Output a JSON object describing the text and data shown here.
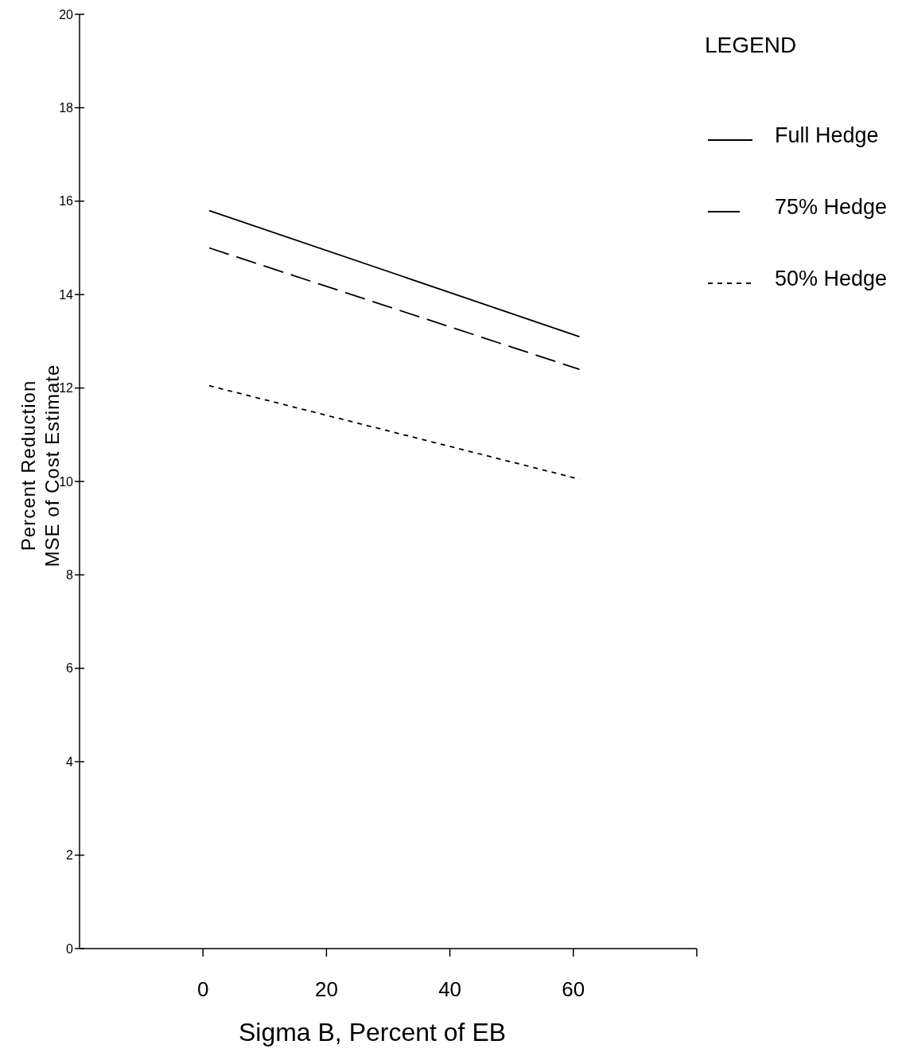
{
  "chart_data": {
    "type": "line",
    "xlabel": "Sigma B, Percent of EB",
    "ylabel": "Percent Reduction\nMSE of Cost Estimate",
    "legend_title": "LEGEND",
    "legend": "top right",
    "grid": false,
    "xlim": [
      -20,
      80
    ],
    "xticks": [
      0,
      20,
      40,
      60,
      {
        "value": 80,
        "label": null
      }
    ],
    "x": [
      1,
      61
    ],
    "ylim": [
      0,
      20
    ],
    "yticks": [
      0,
      2,
      4,
      6,
      8,
      10,
      12,
      14,
      16,
      18,
      20
    ],
    "series": [
      {
        "name": "Full Hedge",
        "color": "#000000",
        "line_style": "solid",
        "values": [
          15.8,
          13.1
        ]
      },
      {
        "name": "75% Hedge",
        "color": "#000000",
        "line_style": "dashed",
        "values": [
          15.0,
          12.4
        ]
      },
      {
        "name": "50% Hedge",
        "color": "#000000",
        "line_style": "dotted",
        "values": [
          12.05,
          10.05
        ]
      }
    ]
  }
}
